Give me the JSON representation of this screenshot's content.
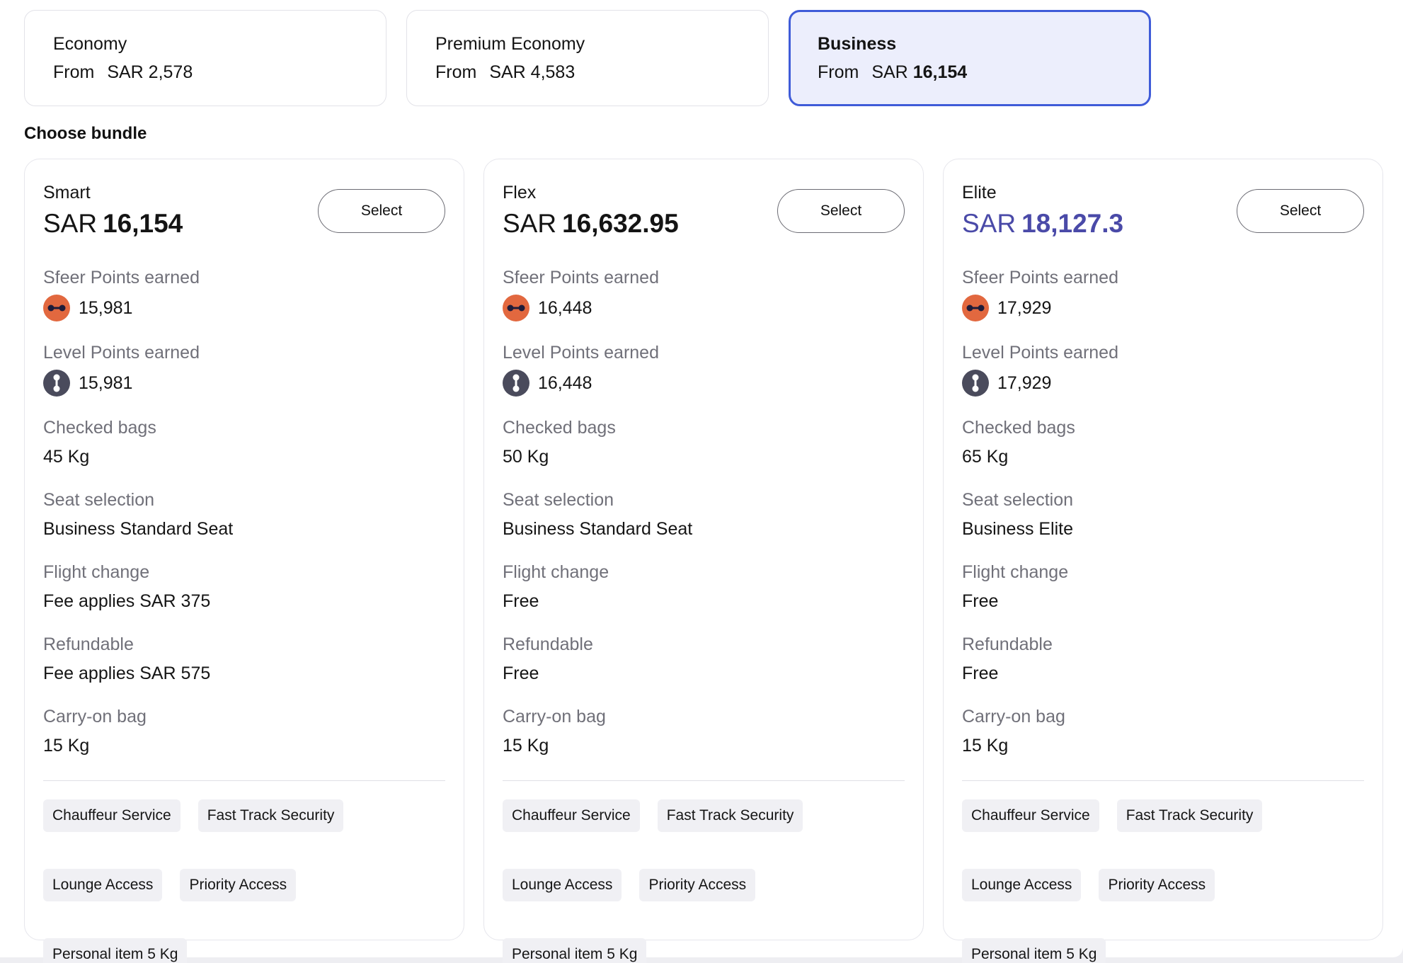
{
  "cabins": [
    {
      "name": "Economy",
      "from_label": "From",
      "price": "SAR 2,578"
    },
    {
      "name": "Premium Economy",
      "from_label": "From",
      "price": "SAR 4,583"
    },
    {
      "name": "Business",
      "from_label": "From",
      "price_currency": "SAR",
      "price_amount": "16,154"
    }
  ],
  "choose_bundle_title": "Choose bundle",
  "colors": {
    "accent": "#3f5bd8",
    "price_accent": "#4a4aa8",
    "sfeer_icon": "#e2683f",
    "level_icon": "#4a4b5c"
  },
  "icons": {
    "sfeer_points": "sfeer-points-icon",
    "level_points": "level-points-icon"
  },
  "labels": {
    "select": "Select",
    "sfeer_points": "Sfeer Points earned",
    "level_points": "Level Points earned",
    "checked_bags": "Checked bags",
    "seat_selection": "Seat selection",
    "flight_change": "Flight change",
    "refundable": "Refundable",
    "carry_on": "Carry-on bag"
  },
  "bundles": [
    {
      "name": "Smart",
      "currency": "SAR",
      "price": "16,154",
      "sfeer_points": "15,981",
      "level_points": "15,981",
      "checked_bags": "45 Kg",
      "seat_selection": "Business Standard Seat",
      "flight_change": "Fee applies SAR 375",
      "refundable": "Fee applies SAR 575",
      "carry_on": "15 Kg",
      "tags": [
        "Chauffeur Service",
        "Fast Track Security",
        "Lounge Access",
        "Priority Access",
        "Personal item 5 Kg"
      ]
    },
    {
      "name": "Flex",
      "currency": "SAR",
      "price": "16,632.95",
      "sfeer_points": "16,448",
      "level_points": "16,448",
      "checked_bags": "50 Kg",
      "seat_selection": "Business Standard Seat",
      "flight_change": "Free",
      "refundable": "Free",
      "carry_on": "15 Kg",
      "tags": [
        "Chauffeur Service",
        "Fast Track Security",
        "Lounge Access",
        "Priority Access",
        "Personal item 5 Kg"
      ]
    },
    {
      "name": "Elite",
      "currency": "SAR",
      "price": "18,127.3",
      "sfeer_points": "17,929",
      "level_points": "17,929",
      "checked_bags": "65 Kg",
      "seat_selection": "Business Elite",
      "flight_change": "Free",
      "refundable": "Free",
      "carry_on": "15 Kg",
      "tags": [
        "Chauffeur Service",
        "Fast Track Security",
        "Lounge Access",
        "Priority Access",
        "Personal item 5 Kg"
      ]
    }
  ]
}
